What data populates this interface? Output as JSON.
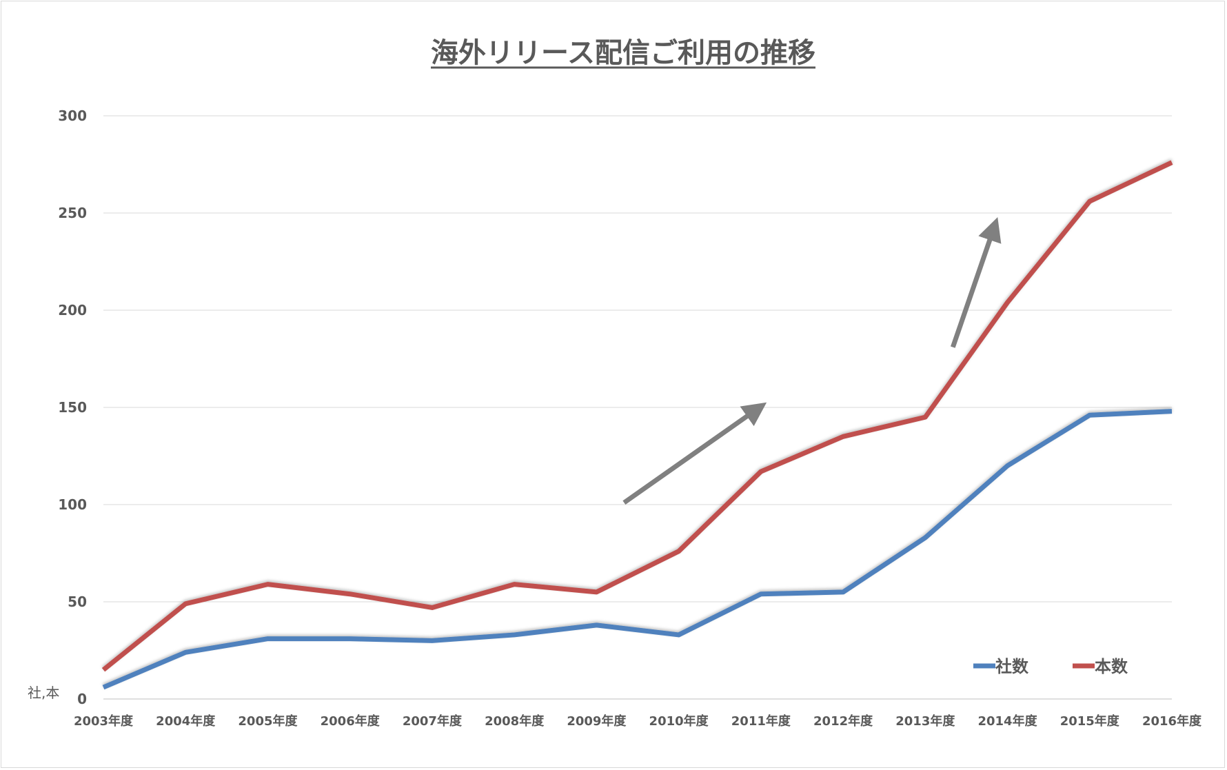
{
  "chart_data": {
    "type": "line",
    "title": "海外リリース配信ご利用の推移",
    "unit_label": "社,本",
    "categories": [
      "2003年度",
      "2004年度",
      "2005年度",
      "2006年度",
      "2007年度",
      "2008年度",
      "2009年度",
      "2010年度",
      "2011年度",
      "2012年度",
      "2013年度",
      "2014年度",
      "2015年度",
      "2016年度"
    ],
    "ylim": [
      0,
      300
    ],
    "yticks": [
      0,
      50,
      100,
      150,
      200,
      250,
      300
    ],
    "grid": true,
    "legend_position": "bottom-right",
    "series": [
      {
        "name": "社数",
        "color": "#4F81BD",
        "values": [
          6,
          24,
          31,
          31,
          30,
          33,
          38,
          33,
          54,
          55,
          83,
          120,
          146,
          148
        ]
      },
      {
        "name": "本数",
        "color": "#C0504D",
        "values": [
          15,
          49,
          59,
          54,
          47,
          59,
          55,
          76,
          117,
          135,
          145,
          204,
          256,
          276
        ]
      }
    ],
    "annotations": [
      {
        "type": "arrow",
        "color": "#808080",
        "from": {
          "x": "2009年度",
          "y": 101
        },
        "to": {
          "x": "2011年度",
          "y": 149
        }
      },
      {
        "type": "arrow",
        "color": "#808080",
        "from": {
          "x": "2013年度",
          "y": 181
        },
        "to": {
          "x": "2014年度",
          "y": 242
        }
      }
    ]
  }
}
